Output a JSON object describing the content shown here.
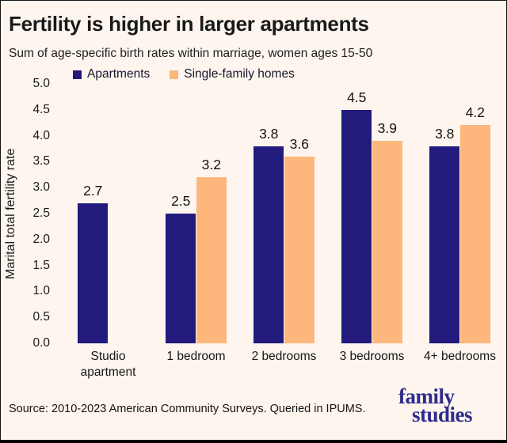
{
  "chart_data": {
    "type": "bar",
    "title": "Fertility is higher in larger apartments",
    "subtitle": "Sum of age-specific birth rates within marriage, women ages 15-50",
    "ylabel": "Marital total fertility rate",
    "xlabel": "",
    "ylim": [
      0,
      5
    ],
    "ytick_labels": [
      "0.0",
      "0.5",
      "1.0",
      "1.5",
      "2.0",
      "2.5",
      "3.0",
      "3.5",
      "4.0",
      "4.5",
      "5.0"
    ],
    "grid": false,
    "legend_position": "top-left",
    "value_labels": true,
    "categories": [
      "Studio apartment",
      "1 bedroom",
      "2 bedrooms",
      "3 bedrooms",
      "4+ bedrooms"
    ],
    "series": [
      {
        "name": "Apartments",
        "color": "#221b7d",
        "values": [
          2.7,
          2.5,
          3.8,
          4.5,
          3.8
        ]
      },
      {
        "name": "Single-family homes",
        "color": "#fdb77c",
        "values": [
          null,
          3.2,
          3.6,
          3.9,
          4.2
        ]
      }
    ]
  },
  "footer": {
    "source": "Source: 2010-2023 American Community Surveys. Queried in IPUMS.",
    "logo": {
      "line1": "family",
      "line2": "studies",
      "color": "#2e2b8c"
    }
  },
  "colors": {
    "background": "#fdf5ee",
    "bar_dark": "#221b7d",
    "bar_light": "#fdb77c",
    "title_text": "#1a1a1a",
    "logo": "#2e2b8c"
  }
}
